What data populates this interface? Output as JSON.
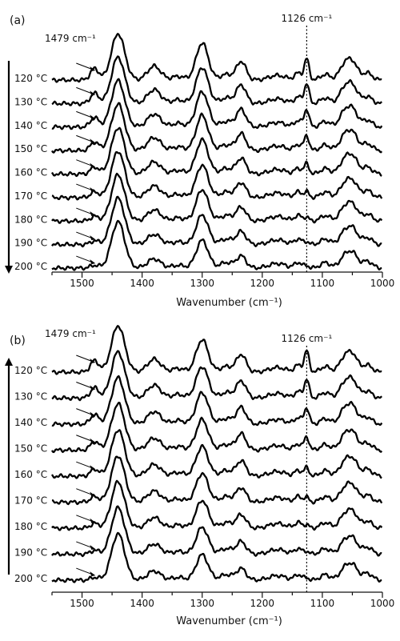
{
  "chart_data": [
    {
      "panel_label": "(a)",
      "type": "line",
      "xlabel": "Wavenumber (cm⁻¹)",
      "x_ticks": [
        "1500",
        "1400",
        "1300",
        "1200",
        "1100",
        "1000"
      ],
      "xlim": [
        1550,
        1000
      ],
      "x_reversed": true,
      "series_labels": [
        "120 °C",
        "130 °C",
        "140 °C",
        "150 °C",
        "160 °C",
        "170 °C",
        "180 °C",
        "190 °C",
        "200 °C"
      ],
      "marker_line": {
        "x": 1126,
        "label": "1126 cm⁻¹"
      },
      "peak_annotation": {
        "x": 1479,
        "label": "1479 cm⁻¹"
      },
      "temperature_arrow": "down",
      "peak_positions": [
        1479,
        1440,
        1380,
        1340,
        1300,
        1260,
        1235,
        1175,
        1140,
        1126,
        1095,
        1062,
        1048,
        1025
      ],
      "peak_heights": [
        [
          0.25,
          1.0,
          0.3,
          0.08,
          0.8,
          0.12,
          0.4,
          0.1,
          0.15,
          0.45,
          0.12,
          0.35,
          0.3,
          0.15
        ],
        [
          0.22,
          1.0,
          0.3,
          0.08,
          0.78,
          0.12,
          0.4,
          0.1,
          0.14,
          0.42,
          0.12,
          0.35,
          0.3,
          0.15
        ],
        [
          0.2,
          1.0,
          0.28,
          0.08,
          0.76,
          0.12,
          0.38,
          0.1,
          0.14,
          0.38,
          0.12,
          0.34,
          0.3,
          0.15
        ],
        [
          0.18,
          1.0,
          0.28,
          0.08,
          0.76,
          0.12,
          0.36,
          0.1,
          0.13,
          0.32,
          0.12,
          0.33,
          0.3,
          0.15
        ],
        [
          0.15,
          1.0,
          0.26,
          0.08,
          0.74,
          0.12,
          0.34,
          0.1,
          0.12,
          0.22,
          0.12,
          0.32,
          0.3,
          0.15
        ],
        [
          0.12,
          1.0,
          0.25,
          0.07,
          0.7,
          0.12,
          0.32,
          0.1,
          0.12,
          0.12,
          0.12,
          0.3,
          0.28,
          0.15
        ],
        [
          0.1,
          1.0,
          0.24,
          0.07,
          0.68,
          0.12,
          0.3,
          0.1,
          0.12,
          0.08,
          0.12,
          0.3,
          0.28,
          0.15
        ],
        [
          0.08,
          1.0,
          0.22,
          0.06,
          0.64,
          0.12,
          0.28,
          0.1,
          0.12,
          0.06,
          0.12,
          0.28,
          0.28,
          0.15
        ],
        [
          0.06,
          1.0,
          0.2,
          0.06,
          0.6,
          0.12,
          0.26,
          0.1,
          0.12,
          0.05,
          0.12,
          0.26,
          0.26,
          0.15
        ]
      ]
    },
    {
      "panel_label": "(b)",
      "type": "line",
      "xlabel": "Wavenumber (cm⁻¹)",
      "x_ticks": [
        "1500",
        "1400",
        "1300",
        "1200",
        "1100",
        "1000"
      ],
      "xlim": [
        1550,
        1000
      ],
      "x_reversed": true,
      "series_labels": [
        "120 °C",
        "130 °C",
        "140 °C",
        "150 °C",
        "160 °C",
        "170 °C",
        "180 °C",
        "190 °C",
        "200 °C"
      ],
      "marker_line": {
        "x": 1126,
        "label": "1126 cm⁻¹"
      },
      "peak_annotation": {
        "x": 1479,
        "label": "1479 cm⁻¹"
      },
      "temperature_arrow": "up",
      "peak_positions": [
        1479,
        1440,
        1380,
        1340,
        1300,
        1260,
        1235,
        1175,
        1140,
        1126,
        1095,
        1062,
        1048,
        1025
      ],
      "peak_heights": [
        [
          0.25,
          1.0,
          0.28,
          0.08,
          0.7,
          0.12,
          0.38,
          0.1,
          0.15,
          0.45,
          0.12,
          0.33,
          0.3,
          0.15
        ],
        [
          0.22,
          1.0,
          0.28,
          0.08,
          0.68,
          0.12,
          0.37,
          0.1,
          0.14,
          0.4,
          0.12,
          0.33,
          0.3,
          0.15
        ],
        [
          0.2,
          1.0,
          0.27,
          0.08,
          0.68,
          0.12,
          0.36,
          0.1,
          0.14,
          0.35,
          0.12,
          0.33,
          0.3,
          0.15
        ],
        [
          0.18,
          1.0,
          0.26,
          0.08,
          0.66,
          0.12,
          0.35,
          0.1,
          0.13,
          0.28,
          0.12,
          0.32,
          0.3,
          0.15
        ],
        [
          0.15,
          1.0,
          0.25,
          0.08,
          0.64,
          0.12,
          0.33,
          0.1,
          0.12,
          0.18,
          0.12,
          0.31,
          0.29,
          0.15
        ],
        [
          0.12,
          1.0,
          0.24,
          0.07,
          0.62,
          0.12,
          0.31,
          0.1,
          0.12,
          0.1,
          0.12,
          0.3,
          0.28,
          0.15
        ],
        [
          0.1,
          1.0,
          0.23,
          0.07,
          0.6,
          0.12,
          0.29,
          0.1,
          0.12,
          0.07,
          0.12,
          0.29,
          0.28,
          0.15
        ],
        [
          0.08,
          1.0,
          0.22,
          0.06,
          0.58,
          0.12,
          0.27,
          0.1,
          0.12,
          0.06,
          0.12,
          0.28,
          0.27,
          0.15
        ],
        [
          0.06,
          1.0,
          0.2,
          0.06,
          0.55,
          0.12,
          0.25,
          0.1,
          0.12,
          0.05,
          0.12,
          0.26,
          0.26,
          0.15
        ]
      ]
    }
  ]
}
